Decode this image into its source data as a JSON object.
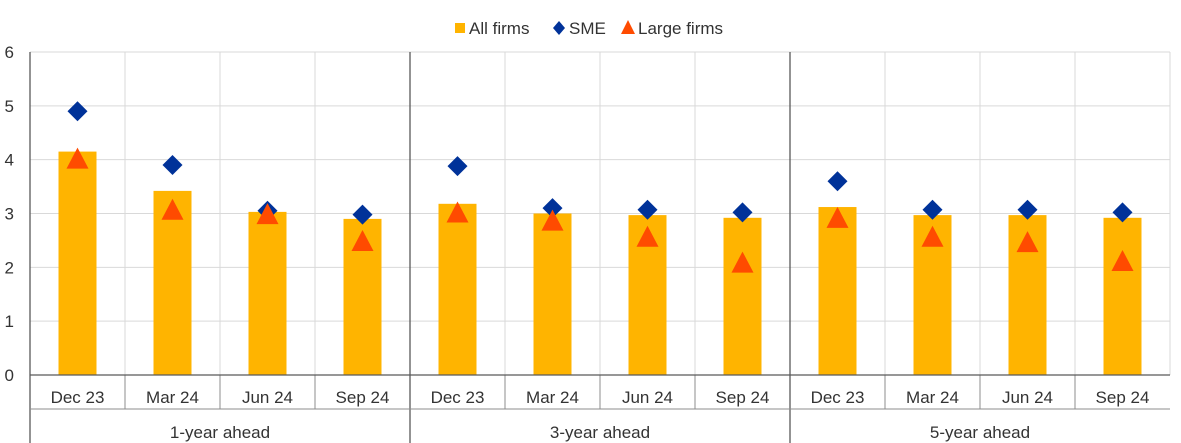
{
  "chart_data": {
    "type": "bar",
    "legend": {
      "position": "top-center",
      "items": [
        {
          "label": "All firms",
          "marker": "square",
          "color": "#FFB400"
        },
        {
          "label": "SME",
          "marker": "diamond",
          "color": "#003299"
        },
        {
          "label": "Large firms",
          "marker": "triangle",
          "color": "#FF4B00"
        }
      ]
    },
    "ylim": [
      0,
      6
    ],
    "yticks": [
      "0",
      "1",
      "2",
      "3",
      "4",
      "5",
      "6"
    ],
    "grid": true,
    "groups": [
      {
        "label": "1-year ahead",
        "categories": [
          "Dec 23",
          "Mar 24",
          "Jun 24",
          "Sep 24"
        ]
      },
      {
        "label": "3-year ahead",
        "categories": [
          "Dec 23",
          "Mar 24",
          "Jun 24",
          "Sep 24"
        ]
      },
      {
        "label": "5-year ahead",
        "categories": [
          "Dec 23",
          "Mar 24",
          "Jun 24",
          "Sep 24"
        ]
      }
    ],
    "series": [
      {
        "name": "All firms",
        "type": "bar",
        "color": "#FFB400",
        "values": [
          4.15,
          3.42,
          3.03,
          2.9,
          3.18,
          3.0,
          2.97,
          2.92,
          3.12,
          2.97,
          2.97,
          2.92
        ]
      },
      {
        "name": "SME",
        "type": "marker-diamond",
        "color": "#003299",
        "values": [
          4.9,
          3.9,
          3.05,
          2.98,
          3.88,
          3.1,
          3.07,
          3.02,
          3.6,
          3.07,
          3.07,
          3.02
        ]
      },
      {
        "name": "Large firms",
        "type": "marker-triangle",
        "color": "#FF4B00",
        "values": [
          4.0,
          3.05,
          2.97,
          2.47,
          3.0,
          2.85,
          2.55,
          2.07,
          2.9,
          2.55,
          2.45,
          2.1
        ]
      }
    ]
  }
}
